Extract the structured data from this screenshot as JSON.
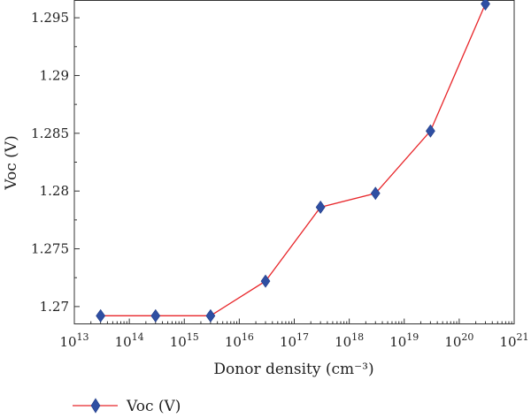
{
  "chart_data": {
    "type": "line",
    "title": "",
    "xlabel": "Donor density (cm⁻³)",
    "ylabel": "Voc (V)",
    "x_scale": "log",
    "xlim": [
      10000000000000.0,
      1e+21
    ],
    "ylim": [
      1.2685,
      1.2965
    ],
    "grid": false,
    "legend_position": "bottom-left",
    "x_ticks": [
      {
        "value": 10000000000000.0,
        "base": "10",
        "exp": "13"
      },
      {
        "value": 100000000000000.0,
        "base": "10",
        "exp": "14"
      },
      {
        "value": 1000000000000000.0,
        "base": "10",
        "exp": "15"
      },
      {
        "value": 1e+16,
        "base": "10",
        "exp": "16"
      },
      {
        "value": 1e+17,
        "base": "10",
        "exp": "17"
      },
      {
        "value": 1e+18,
        "base": "10",
        "exp": "18"
      },
      {
        "value": 1e+19,
        "base": "10",
        "exp": "19"
      },
      {
        "value": 1e+20,
        "base": "10",
        "exp": "20"
      },
      {
        "value": 1e+21,
        "base": "10",
        "exp": "21"
      }
    ],
    "y_ticks": [
      {
        "value": 1.27,
        "label": "1.27"
      },
      {
        "value": 1.275,
        "label": "1.275"
      },
      {
        "value": 1.28,
        "label": "1.28"
      },
      {
        "value": 1.285,
        "label": "1.285"
      },
      {
        "value": 1.29,
        "label": "1.29"
      },
      {
        "value": 1.295,
        "label": "1.295"
      }
    ],
    "series": [
      {
        "name": "Voc (V)",
        "color": "#e8262a",
        "marker_color": "#2f4fa3",
        "marker": "diamond",
        "x": [
          30000000000000.0,
          300000000000000.0,
          3000000000000000.0,
          3e+16,
          3e+17,
          3e+18,
          3e+19,
          3e+20
        ],
        "y": [
          1.2692,
          1.2692,
          1.2692,
          1.2722,
          1.2786,
          1.2798,
          1.2852,
          1.2962
        ]
      }
    ]
  }
}
